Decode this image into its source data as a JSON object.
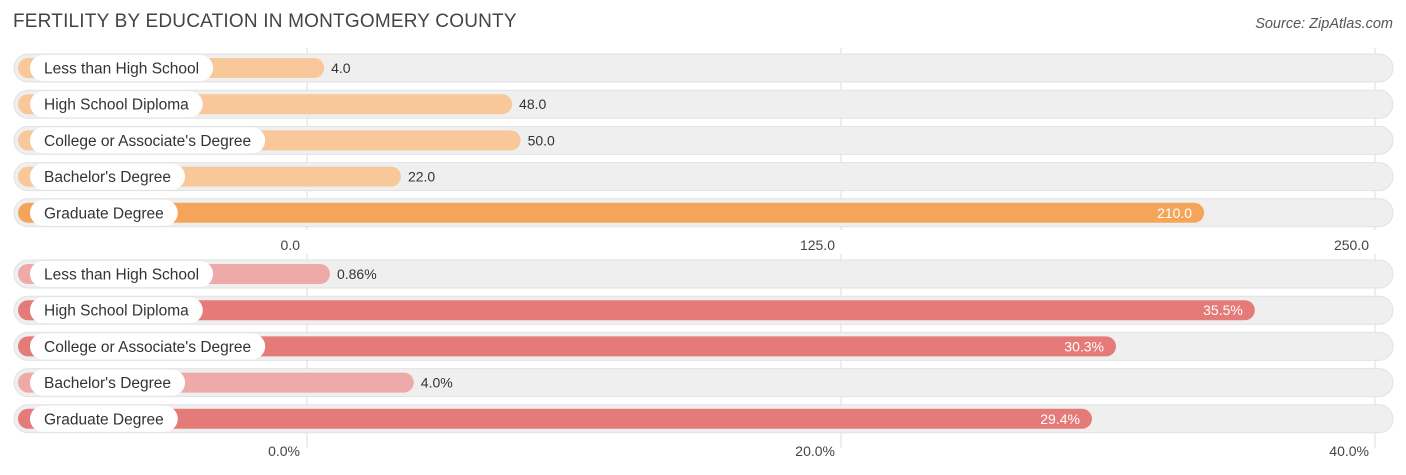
{
  "title": "FERTILITY BY EDUCATION IN MONTGOMERY COUNTY",
  "source": "Source: ZipAtlas.com",
  "colors": {
    "count_strong": "#f5a55a",
    "count_light": "#f8c79a",
    "rate_strong": "#e57b78",
    "rate_light": "#eeaaa8",
    "track": "#efefef",
    "grid": "#dddddd"
  },
  "chart_data": [
    {
      "type": "bar",
      "orientation": "horizontal",
      "categories": [
        "Less than High School",
        "High School Diploma",
        "College or Associate's Degree",
        "Bachelor's Degree",
        "Graduate Degree"
      ],
      "values": [
        4.0,
        48.0,
        50.0,
        22.0,
        210.0
      ],
      "value_labels": [
        "4.0",
        "48.0",
        "50.0",
        "22.0",
        "210.0"
      ],
      "xlim": [
        0,
        250
      ],
      "ticks": [
        0,
        125,
        250
      ],
      "tick_labels": [
        "0.0",
        "125.0",
        "250.0"
      ],
      "grid": true
    },
    {
      "type": "bar",
      "orientation": "horizontal",
      "categories": [
        "Less than High School",
        "High School Diploma",
        "College or Associate's Degree",
        "Bachelor's Degree",
        "Graduate Degree"
      ],
      "values": [
        0.86,
        35.5,
        30.3,
        4.0,
        29.4
      ],
      "value_labels": [
        "0.86%",
        "35.5%",
        "30.3%",
        "4.0%",
        "29.4%"
      ],
      "xlim": [
        0,
        40
      ],
      "ticks": [
        0,
        20,
        40
      ],
      "tick_labels": [
        "0.0%",
        "20.0%",
        "40.0%"
      ],
      "grid": true
    }
  ]
}
